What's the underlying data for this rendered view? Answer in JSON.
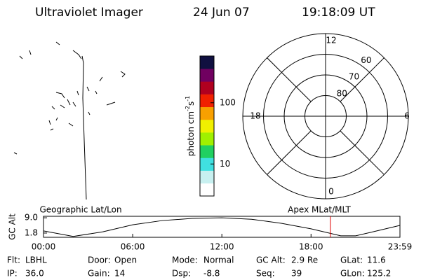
{
  "header": {
    "title": "Ultraviolet Imager",
    "date": "24 Jun 07",
    "time": "19:18:09 UT"
  },
  "map": {
    "title": "Geographic Lat/Lon"
  },
  "chart_data": [
    {
      "type": "colorbar",
      "label_parts": [
        "photon cm",
        "-2",
        "s",
        "-1"
      ],
      "log_scale": true,
      "ylim": [
        3,
        580
      ],
      "yticks": [
        10,
        100
      ],
      "colors": [
        "#ffffff",
        "#c8f0f0",
        "#40e0e0",
        "#20d060",
        "#a0f000",
        "#f0f000",
        "#f8a000",
        "#f02000",
        "#b00020",
        "#700060",
        "#101040"
      ]
    },
    {
      "type": "polar",
      "title": "Apex MLat/MLT",
      "rlim": [
        90,
        50
      ],
      "rticks": [
        60,
        70,
        80
      ],
      "angle_ticks": [
        12,
        18,
        6,
        0
      ]
    },
    {
      "type": "line",
      "ylabel": "GC Alt",
      "x": [
        0,
        2,
        4,
        6,
        8,
        10,
        12,
        14,
        16,
        18,
        20,
        21,
        22,
        23.983
      ],
      "series": [
        {
          "color": "#000000",
          "values": [
            2.8,
            0.2,
            2.4,
            5.7,
            7.7,
            8.7,
            9.0,
            8.3,
            6.4,
            3.8,
            0.5,
            0.5,
            2.1,
            5.4
          ]
        }
      ],
      "xlim": [
        0,
        23.983
      ],
      "xticks": [
        {
          "value": 0,
          "label": "00:00"
        },
        {
          "value": 6,
          "label": "06:00"
        },
        {
          "value": 12,
          "label": "12:00"
        },
        {
          "value": 18,
          "label": "18:00"
        },
        {
          "value": 23.983,
          "label": "23:59"
        }
      ],
      "ylim": [
        -0.2,
        9.7
      ],
      "yticks": [
        {
          "value": 9,
          "label": "9.0"
        },
        1.8
      ],
      "marker": {
        "x": 19.3025,
        "color": "#e00000"
      }
    }
  ],
  "footer": [
    [
      "Flt:",
      "LBHL"
    ],
    [
      "Door:",
      "Open"
    ],
    [
      "Mode:",
      "Normal"
    ],
    [
      "GC Alt:",
      "2.9 Re"
    ],
    [
      "GLat:",
      "11.6"
    ],
    [
      "IP:",
      "36.0"
    ],
    [
      "Gain:",
      "14"
    ],
    [
      "Dsp:",
      "-8.8"
    ],
    [
      "Seq:",
      "39"
    ],
    [
      "GLon:",
      "125.2"
    ]
  ]
}
